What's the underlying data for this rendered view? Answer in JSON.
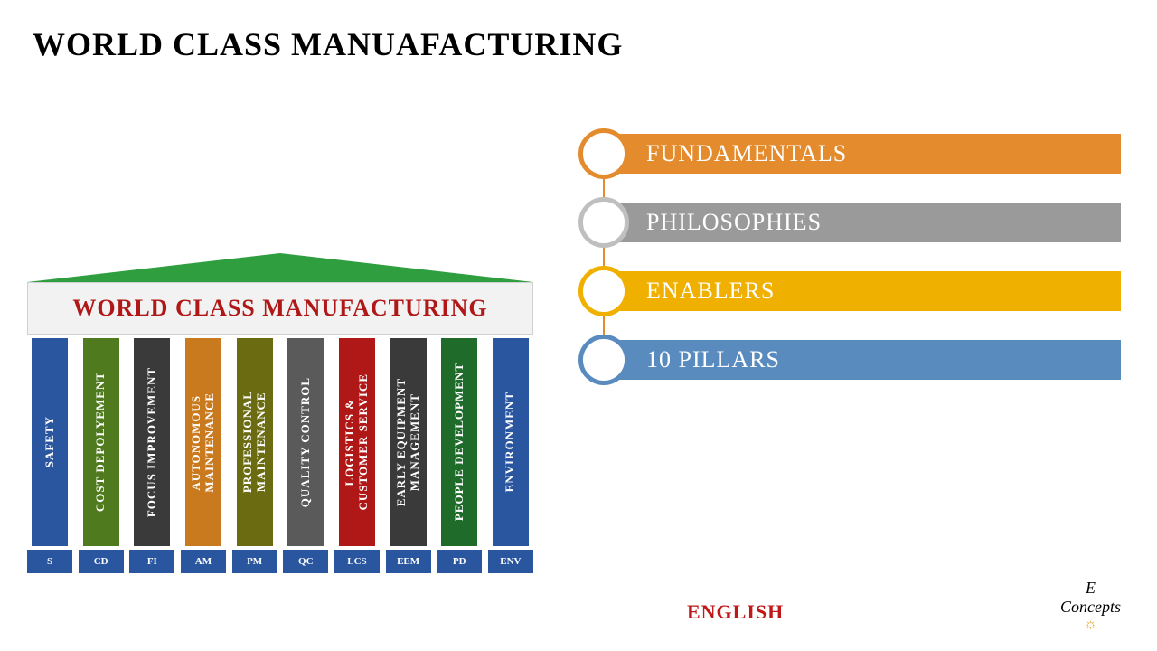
{
  "title": "WORLD CLASS MANUAFACTURING",
  "temple": {
    "roof_color": "#2e9e3f",
    "roof_height": 32,
    "header_text": "WORLD CLASS MANUFACTURING",
    "header_text_color": "#b01818",
    "header_bg": "#f2f2f2",
    "pillars": [
      {
        "label": "SAFETY",
        "bg": "#2a56a0",
        "fg": "#ffffff",
        "base_label": "S",
        "base_bg": "#2a56a0",
        "base_fg": "#ffffff"
      },
      {
        "label": "COST DEPOLYEMENT",
        "bg": "#4f7a1e",
        "fg": "#ffffff",
        "base_label": "CD",
        "base_bg": "#2a56a0",
        "base_fg": "#ffffff"
      },
      {
        "label": "FOCUS IMPROVEMENT",
        "bg": "#3a3a3a",
        "fg": "#ffffff",
        "base_label": "FI",
        "base_bg": "#2a56a0",
        "base_fg": "#ffffff"
      },
      {
        "label": "AUTONOMOUS\nMAINTENANCE",
        "bg": "#c97a1e",
        "fg": "#ffffff",
        "base_label": "AM",
        "base_bg": "#2a56a0",
        "base_fg": "#ffffff"
      },
      {
        "label": "PROFESSIONAL\nMAINTENANCE",
        "bg": "#6b6b12",
        "fg": "#ffffff",
        "base_label": "PM",
        "base_bg": "#2a56a0",
        "base_fg": "#ffffff"
      },
      {
        "label": "QUALITY CONTROL",
        "bg": "#5a5a5a",
        "fg": "#ffffff",
        "base_label": "QC",
        "base_bg": "#2a56a0",
        "base_fg": "#ffffff"
      },
      {
        "label": "LOGISTICS &\nCUSTOMER  SERVICE",
        "bg": "#b01818",
        "fg": "#ffffff",
        "base_label": "LCS",
        "base_bg": "#2a56a0",
        "base_fg": "#ffffff"
      },
      {
        "label": "EARLY EQUIPMENT\nMANAGEMENT",
        "bg": "#3a3a3a",
        "fg": "#ffffff",
        "base_label": "EEM",
        "base_bg": "#2a56a0",
        "base_fg": "#ffffff"
      },
      {
        "label": "PEOPLE DEVELOPMENT",
        "bg": "#1f6b2a",
        "fg": "#ffffff",
        "base_label": "PD",
        "base_bg": "#2a56a0",
        "base_fg": "#ffffff"
      },
      {
        "label": "ENVIRONMENT",
        "bg": "#2a56a0",
        "fg": "#ffffff",
        "base_label": "ENV",
        "base_bg": "#2a56a0",
        "base_fg": "#ffffff"
      }
    ]
  },
  "list": {
    "connector_color": "#e48b2e",
    "items": [
      {
        "label": "FUNDAMENTALS",
        "bar_color": "#e48b2e",
        "circle_border": "#e48b2e"
      },
      {
        "label": "PHILOSOPHIES",
        "bar_color": "#9a9a9a",
        "circle_border": "#bfbfbf"
      },
      {
        "label": "ENABLERS",
        "bar_color": "#f0b000",
        "circle_border": "#f0b000"
      },
      {
        "label": "10 PILLARS",
        "bar_color": "#5a8bbf",
        "circle_border": "#5a8bbf"
      }
    ]
  },
  "footer": {
    "language_label": "ENGLISH",
    "language_color": "#c01818",
    "logo_line1": "E",
    "logo_line2": "Concepts",
    "logo_bulb": "☼"
  }
}
